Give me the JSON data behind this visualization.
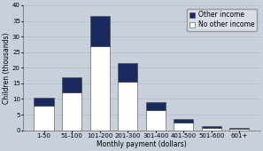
{
  "categories": [
    "1-50",
    "51-100",
    "101-200",
    "201-300",
    "301-400",
    "401-500",
    "501-600",
    "601+"
  ],
  "no_other_income": [
    8,
    12,
    27,
    15.5,
    6.5,
    2.5,
    0.8,
    0.6
  ],
  "other_income": [
    2.5,
    5,
    9.5,
    6,
    2.5,
    1.2,
    0.4,
    0.3
  ],
  "bar_color_no_other": "#ffffff",
  "bar_color_other": "#1a2a5e",
  "bar_edge_color": "#444444",
  "background_color": "#c8d0dc",
  "grid_color": "#b0bac8",
  "ylabel": "Children (thousands)",
  "xlabel": "Monthly payment (dollars)",
  "ylim": [
    0,
    40
  ],
  "yticks": [
    0,
    5,
    10,
    15,
    20,
    25,
    30,
    35,
    40
  ],
  "legend_other": "Other income",
  "legend_no_other": "No other income",
  "axis_fontsize": 5.5,
  "tick_fontsize": 5.0,
  "legend_fontsize": 5.5,
  "bar_width": 0.7
}
